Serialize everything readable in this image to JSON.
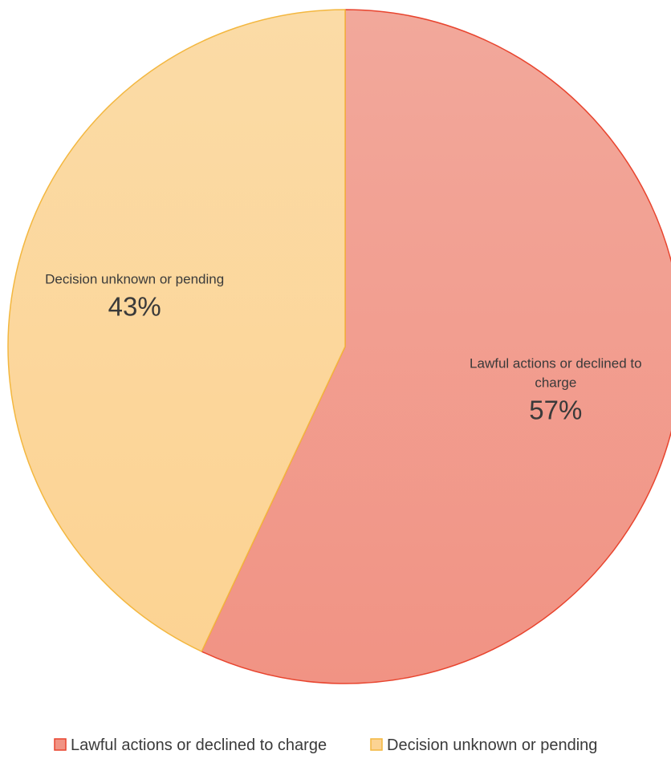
{
  "chart_data": {
    "type": "pie",
    "title": "",
    "slices": [
      {
        "label": "Lawful actions or declined to charge",
        "label_lines": [
          "Lawful actions or declined to",
          "charge"
        ],
        "value": 57,
        "display": "57%",
        "fill": "#f19384",
        "fill_light": "#f2a89b",
        "stroke": "#e8442e"
      },
      {
        "label": "Decision unknown or pending",
        "label_lines": [
          "Decision unknown or pending"
        ],
        "value": 43,
        "display": "43%",
        "fill": "#fcd393",
        "fill_light": "#fbdba6",
        "stroke": "#f3b73f"
      }
    ],
    "legend": {
      "placement": "bottom",
      "entries": [
        "Lawful actions or declined to charge",
        "Decision unknown or pending"
      ]
    }
  }
}
